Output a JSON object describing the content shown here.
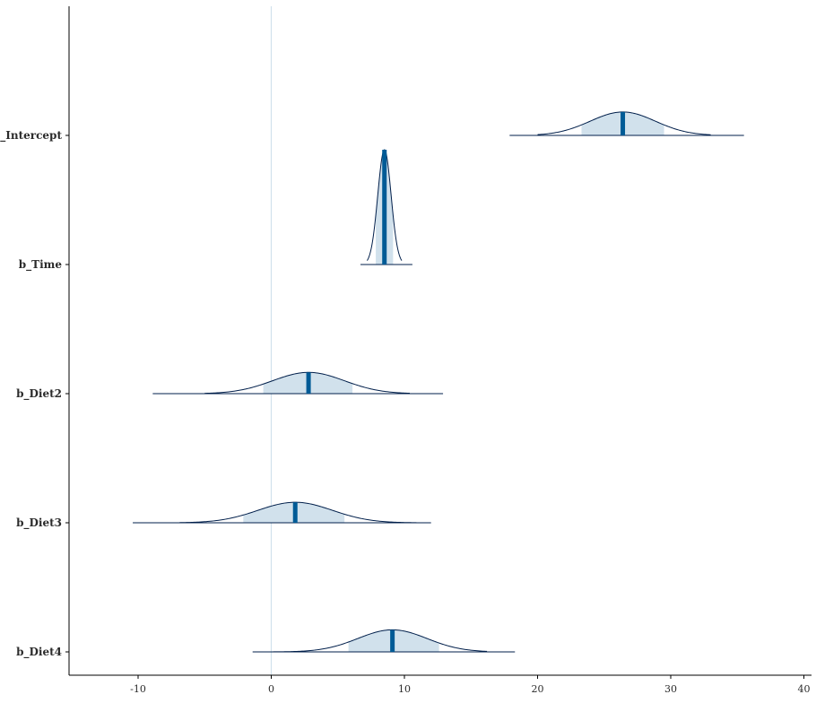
{
  "chart_data": {
    "type": "area",
    "subtype": "posterior-density-ridges",
    "title": "",
    "xlabel": "",
    "ylabel": "",
    "xlim": [
      -15,
      40
    ],
    "x_ticks": [
      -10,
      0,
      10,
      20,
      30,
      40
    ],
    "x_tick_labels": [
      "-10",
      "0",
      "10",
      "20",
      "30",
      "40"
    ],
    "reference_line_x": 0,
    "grid": false,
    "series": [
      {
        "name": "b_Intercept",
        "median": 26.4,
        "sd": 2.45,
        "inner_interval": [
          23.3,
          29.5
        ],
        "outer_interval": [
          20.0,
          33.0
        ],
        "range": [
          17.9,
          35.5
        ]
      },
      {
        "name": "b_Time",
        "median": 8.5,
        "sd": 0.5,
        "inner_interval": [
          7.85,
          9.15
        ],
        "outer_interval": [
          7.2,
          9.8
        ],
        "range": [
          6.7,
          10.6
        ]
      },
      {
        "name": "b_Diet2",
        "median": 2.8,
        "sd": 2.7,
        "inner_interval": [
          -0.6,
          6.1
        ],
        "outer_interval": [
          -5.0,
          10.4
        ],
        "range": [
          -8.9,
          12.9
        ]
      },
      {
        "name": "b_Diet3",
        "median": 1.8,
        "sd": 2.8,
        "inner_interval": [
          -2.1,
          5.5
        ],
        "outer_interval": [
          -6.9,
          10.9
        ],
        "range": [
          -10.4,
          12.0
        ]
      },
      {
        "name": "b_Diet4",
        "median": 9.1,
        "sd": 2.6,
        "inner_interval": [
          5.8,
          12.6
        ],
        "outer_interval": [
          0.0,
          16.2
        ],
        "range": [
          -1.4,
          18.3
        ]
      }
    ],
    "colors": {
      "fill": "#d1e1ec",
      "outline": "#011f4b",
      "median": "#005b96",
      "reference": "#d1e1ec",
      "axis": "#000000"
    }
  }
}
